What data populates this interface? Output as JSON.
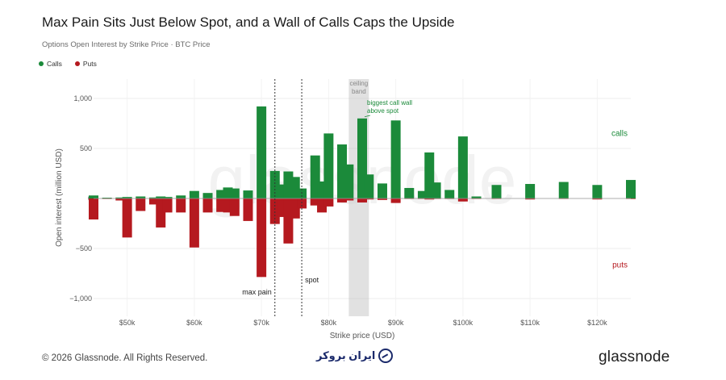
{
  "header": {
    "title": "Max Pain Sits Just Below Spot, and a Wall of Calls Caps the Upside",
    "subtitle": "Options Open Interest by Strike Price · BTC Price"
  },
  "legend": [
    {
      "label": "Calls",
      "color": "#1b8a3a"
    },
    {
      "label": "Puts",
      "color": "#b5191f"
    }
  ],
  "footer": {
    "copyright": "© 2026 Glassnode. All Rights Reserved.",
    "brand": "ایران بروکر",
    "logo": "glassnode",
    "watermark": "glassnode"
  },
  "chart_data": {
    "type": "bar",
    "xlabel": "Strike price (USD)",
    "ylabel": "Open interest (million USD)",
    "xlim": [
      45000,
      125000
    ],
    "ylim": [
      -1000,
      1000
    ],
    "x_ticks": [
      50000,
      60000,
      70000,
      80000,
      90000,
      100000,
      110000,
      120000
    ],
    "x_tick_labels": [
      "$50k",
      "$60k",
      "$70k",
      "$80k",
      "$90k",
      "$100k",
      "$110k",
      "$120k"
    ],
    "y_ticks": [
      1000,
      500,
      0,
      -500,
      -1000
    ],
    "y_tick_labels": [
      "1,000",
      "500",
      "0",
      "−500",
      "−1,000"
    ],
    "grid": true,
    "calls_color": "#1b8a3a",
    "puts_color": "#b5191f",
    "bars": [
      {
        "strike": 45000,
        "calls": 30,
        "puts": -210
      },
      {
        "strike": 47000,
        "calls": 8,
        "puts": -5
      },
      {
        "strike": 49000,
        "calls": 10,
        "puts": -20
      },
      {
        "strike": 50000,
        "calls": 15,
        "puts": -390
      },
      {
        "strike": 52000,
        "calls": 20,
        "puts": -125
      },
      {
        "strike": 54000,
        "calls": 10,
        "puts": -60
      },
      {
        "strike": 55000,
        "calls": 20,
        "puts": -290
      },
      {
        "strike": 56000,
        "calls": 15,
        "puts": -140
      },
      {
        "strike": 58000,
        "calls": 30,
        "puts": -140
      },
      {
        "strike": 60000,
        "calls": 75,
        "puts": -490
      },
      {
        "strike": 62000,
        "calls": 55,
        "puts": -140
      },
      {
        "strike": 64000,
        "calls": 85,
        "puts": -135
      },
      {
        "strike": 65000,
        "calls": 110,
        "puts": -140
      },
      {
        "strike": 66000,
        "calls": 100,
        "puts": -175
      },
      {
        "strike": 68000,
        "calls": 80,
        "puts": -225
      },
      {
        "strike": 70000,
        "calls": 920,
        "puts": -785
      },
      {
        "strike": 72000,
        "calls": 275,
        "puts": -255
      },
      {
        "strike": 73000,
        "calls": 140,
        "puts": -185
      },
      {
        "strike": 74000,
        "calls": 270,
        "puts": -450
      },
      {
        "strike": 75000,
        "calls": 215,
        "puts": -200
      },
      {
        "strike": 76000,
        "calls": 100,
        "puts": -100
      },
      {
        "strike": 78000,
        "calls": 430,
        "puts": -70
      },
      {
        "strike": 79000,
        "calls": 170,
        "puts": -140
      },
      {
        "strike": 80000,
        "calls": 650,
        "puts": -80
      },
      {
        "strike": 82000,
        "calls": 540,
        "puts": -40
      },
      {
        "strike": 83000,
        "calls": 340,
        "puts": -20
      },
      {
        "strike": 85000,
        "calls": 800,
        "puts": -40
      },
      {
        "strike": 86000,
        "calls": 240,
        "puts": -10
      },
      {
        "strike": 88000,
        "calls": 150,
        "puts": -15
      },
      {
        "strike": 90000,
        "calls": 780,
        "puts": -45
      },
      {
        "strike": 92000,
        "calls": 105,
        "puts": -5
      },
      {
        "strike": 94000,
        "calls": 75,
        "puts": -5
      },
      {
        "strike": 95000,
        "calls": 460,
        "puts": -10
      },
      {
        "strike": 96000,
        "calls": 160,
        "puts": -5
      },
      {
        "strike": 98000,
        "calls": 85,
        "puts": -5
      },
      {
        "strike": 100000,
        "calls": 620,
        "puts": -30
      },
      {
        "strike": 102000,
        "calls": 20,
        "puts": -5
      },
      {
        "strike": 105000,
        "calls": 135,
        "puts": -5
      },
      {
        "strike": 110000,
        "calls": 145,
        "puts": -10
      },
      {
        "strike": 115000,
        "calls": 165,
        "puts": -5
      },
      {
        "strike": 120000,
        "calls": 135,
        "puts": -10
      },
      {
        "strike": 125000,
        "calls": 185,
        "puts": -5
      }
    ],
    "reference_lines": [
      {
        "label": "max pain",
        "x": 72000
      },
      {
        "label": "spot",
        "x": 76000
      }
    ],
    "band": {
      "label_line1": "ceiling",
      "label_line2": "band",
      "x_start": 83000,
      "x_end": 86000
    },
    "annotations": [
      {
        "text_line1": "biggest call wall",
        "text_line2": "above spot",
        "x": 85000,
        "y": 800
      },
      {
        "text": "calls",
        "x": 125000,
        "y": 650
      },
      {
        "text": "puts",
        "x": 125000,
        "y": -650
      }
    ]
  }
}
